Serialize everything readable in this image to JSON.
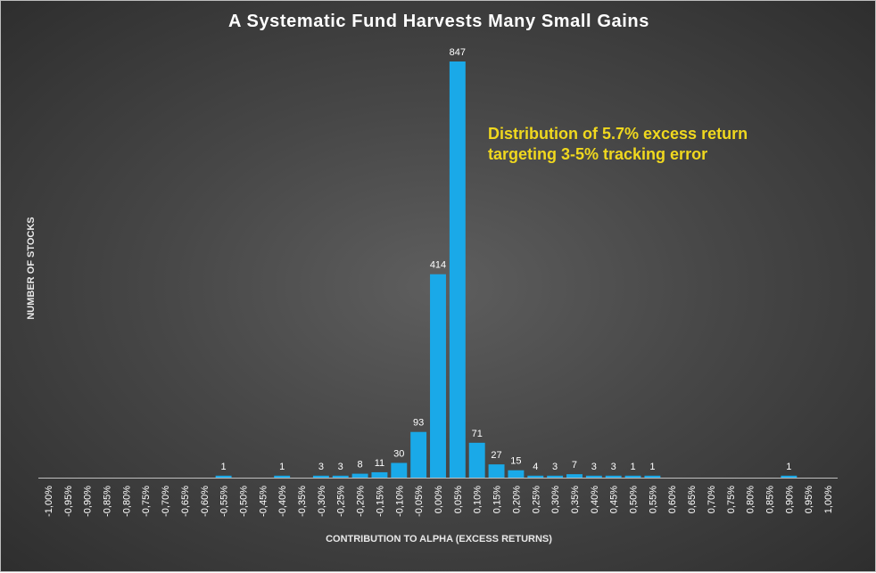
{
  "colors": {
    "bar": "#1aa9e8",
    "axis": "#bfbfbf",
    "annotation": "#f0d81e",
    "text": "#ffffff"
  },
  "chart_data": {
    "type": "bar",
    "title": "A Systematic Fund Harvests Many Small Gains",
    "xlabel": "CONTRIBUTION TO ALPHA (EXCESS RETURNS)",
    "ylabel": "NUMBER OF STOCKS",
    "ylim": [
      0,
      847
    ],
    "grid": false,
    "categories": [
      "-1,00%",
      "-0,95%",
      "-0,90%",
      "-0,85%",
      "-0,80%",
      "-0,75%",
      "-0,70%",
      "-0,65%",
      "-0,60%",
      "-0,55%",
      "-0,50%",
      "-0,45%",
      "-0,40%",
      "-0,35%",
      "-0,30%",
      "-0,25%",
      "-0,20%",
      "-0,15%",
      "-0,10%",
      "-0,05%",
      "0,00%",
      "0,05%",
      "0,10%",
      "0,15%",
      "0,20%",
      "0,25%",
      "0,30%",
      "0,35%",
      "0,40%",
      "0,45%",
      "0,50%",
      "0,55%",
      "0,60%",
      "0,65%",
      "0,70%",
      "0,75%",
      "0,80%",
      "0,85%",
      "0,90%",
      "0,95%",
      "1,00%"
    ],
    "values": [
      0,
      0,
      0,
      0,
      0,
      0,
      0,
      0,
      0,
      1,
      0,
      0,
      1,
      0,
      3,
      3,
      8,
      11,
      30,
      93,
      414,
      847,
      71,
      27,
      15,
      4,
      3,
      7,
      3,
      3,
      1,
      1,
      0,
      0,
      0,
      0,
      0,
      0,
      1,
      0,
      0
    ],
    "annotations": [
      "Distribution of 5.7% excess return",
      "targeting 3-5% tracking error"
    ]
  }
}
